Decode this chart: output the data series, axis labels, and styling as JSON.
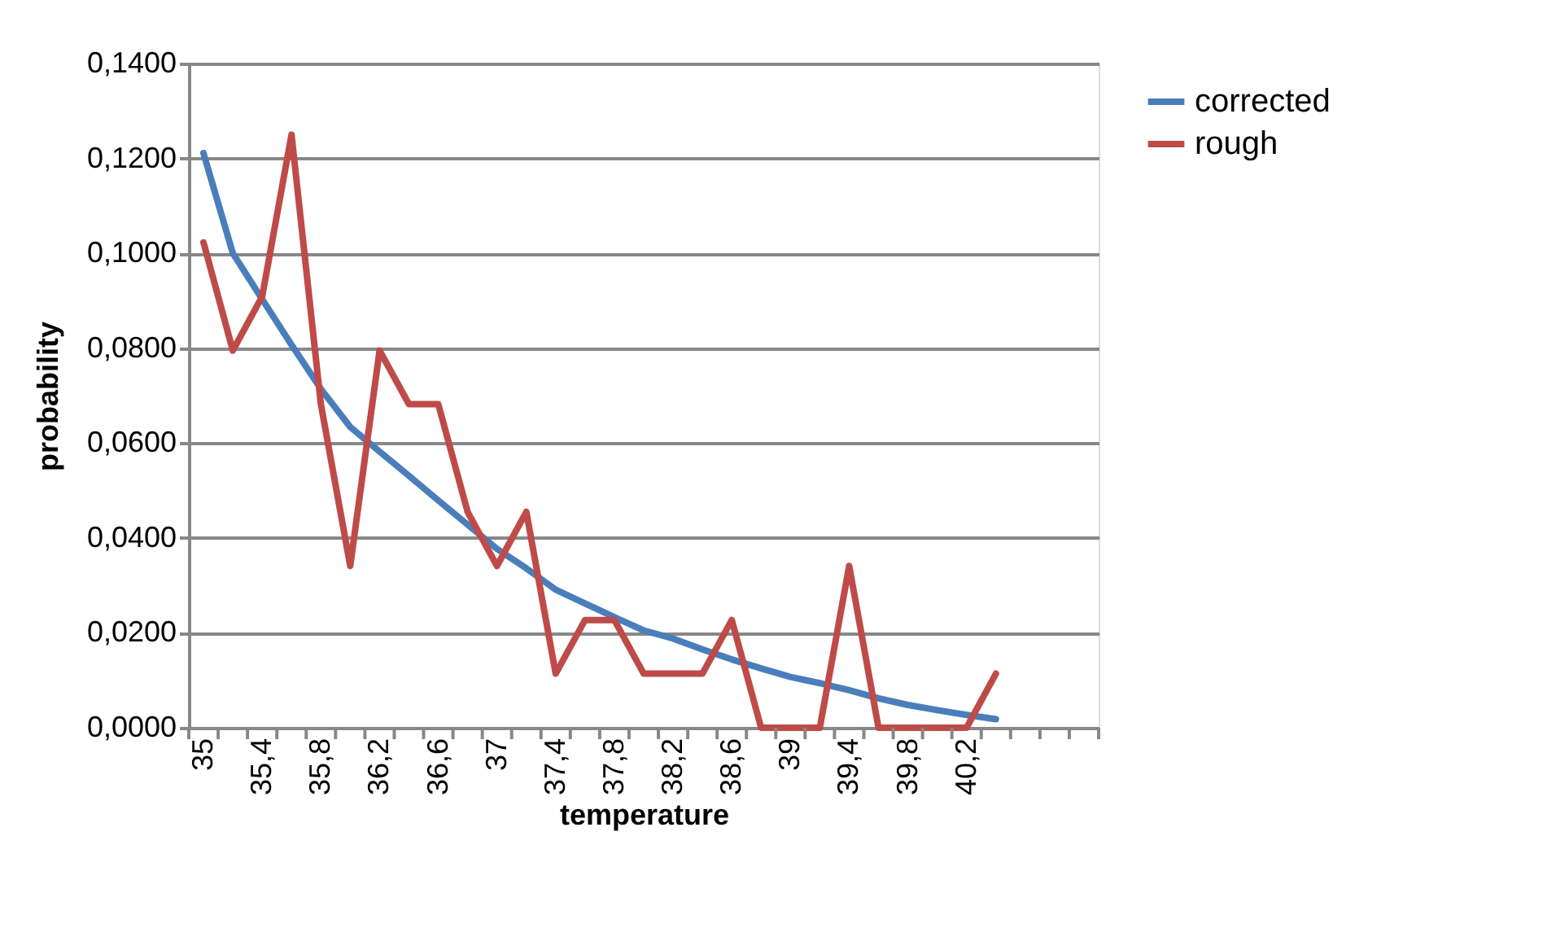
{
  "chart_data": {
    "type": "line",
    "xlabel": "temperature",
    "ylabel": "probability",
    "categories": [
      "35",
      null,
      "35,4",
      null,
      "35,8",
      null,
      "36,2",
      null,
      "36,6",
      null,
      "37",
      null,
      "37,4",
      null,
      "37,8",
      null,
      "38,2",
      null,
      "38,6",
      null,
      "39",
      null,
      "39,4",
      null,
      "39,8",
      null,
      "40,2",
      null,
      null,
      null,
      null
    ],
    "series": [
      {
        "name": "corrected",
        "color": "#4a7ebb",
        "values": [
          0.1211,
          0.1,
          0.0903,
          0.0807,
          0.0714,
          0.0634,
          0.0582,
          0.0531,
          0.0479,
          0.0428,
          0.0377,
          0.0336,
          0.0291,
          0.0262,
          0.0233,
          0.0205,
          0.0188,
          0.0165,
          0.0144,
          0.0125,
          0.0107,
          0.0094,
          0.0079,
          0.0062,
          0.0048,
          0.0037,
          0.0027,
          0.0018,
          null,
          null,
          null
        ]
      },
      {
        "name": "rough",
        "color": "#be4b48",
        "values": [
          0.1023,
          0.0795,
          0.0909,
          0.125,
          0.0682,
          0.0341,
          0.0795,
          0.0682,
          0.0682,
          0.0455,
          0.0341,
          0.0455,
          0.0114,
          0.0227,
          0.0227,
          0.0114,
          0.0114,
          0.0114,
          0.0227,
          0,
          0,
          0,
          0.0341,
          0,
          0,
          0,
          0,
          0.0114,
          null,
          null,
          null
        ]
      }
    ],
    "ylim": [
      0,
      0.14
    ],
    "yticks": [
      {
        "value": 0,
        "label": "0,0000"
      },
      {
        "value": 0.02,
        "label": "0,0200"
      },
      {
        "value": 0.04,
        "label": "0,0400"
      },
      {
        "value": 0.06,
        "label": "0,0600"
      },
      {
        "value": 0.08,
        "label": "0,0800"
      },
      {
        "value": 0.1,
        "label": "0,1000"
      },
      {
        "value": 0.12,
        "label": "0,1200"
      },
      {
        "value": 0.14,
        "label": "0,1400"
      }
    ],
    "grid": "y",
    "legend": "right",
    "marker": "none",
    "line_style": "solid"
  }
}
